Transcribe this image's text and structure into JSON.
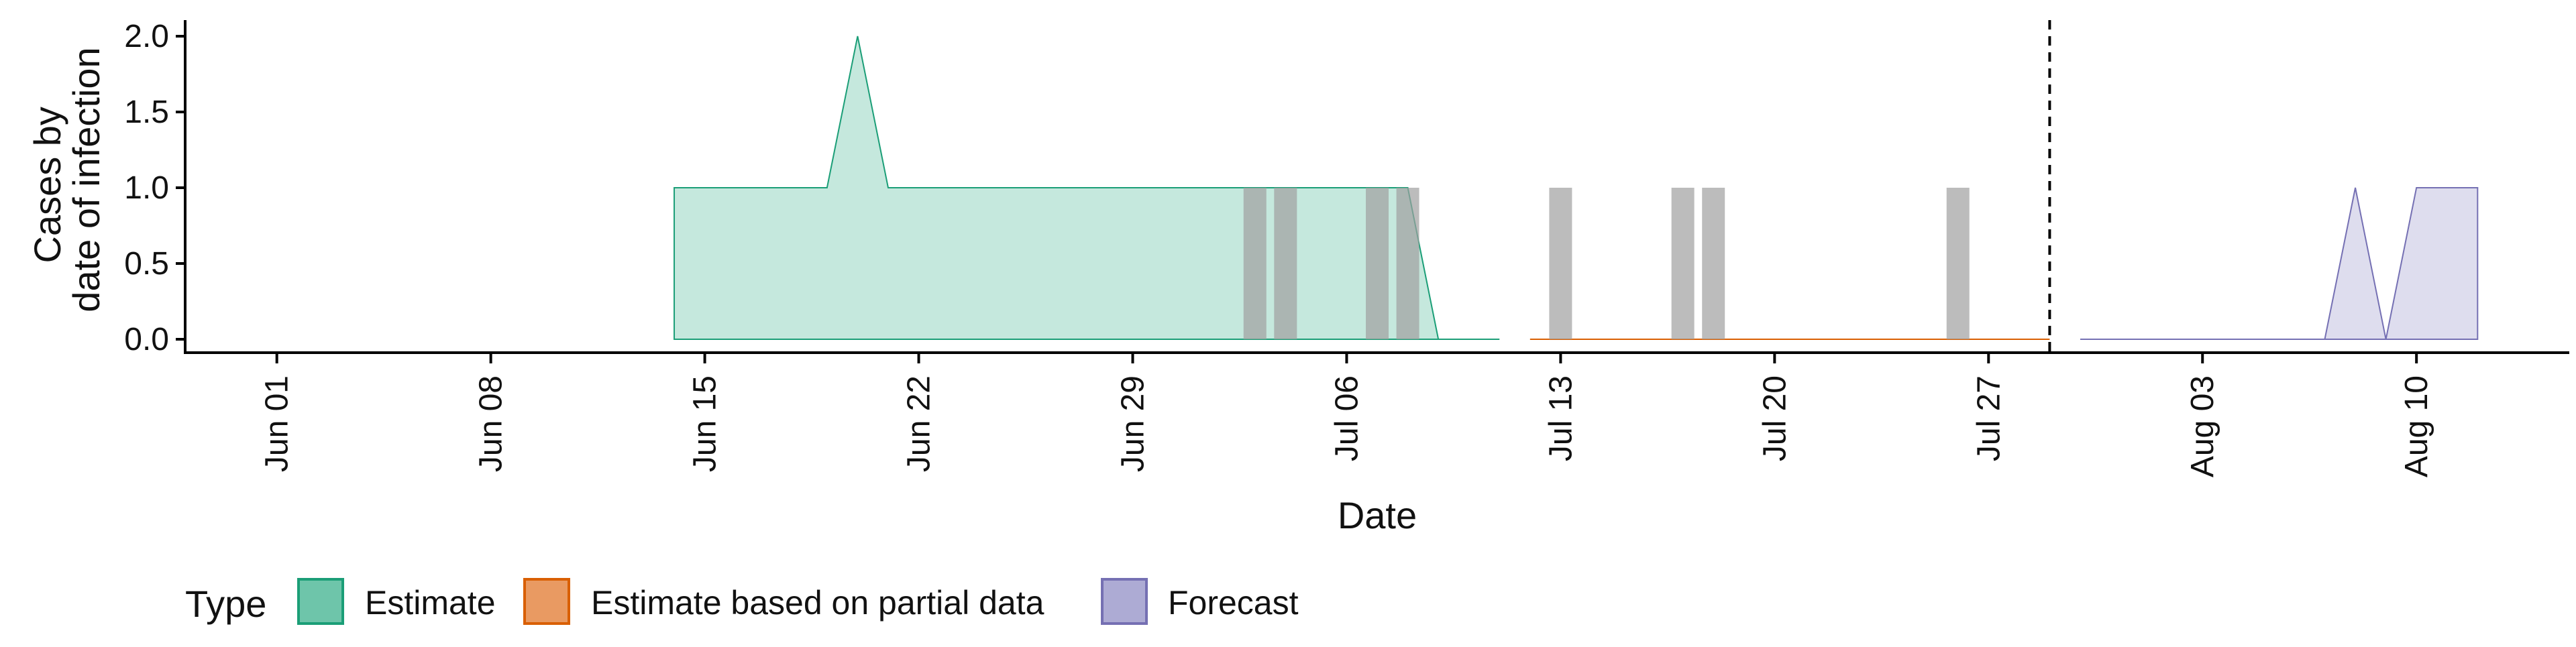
{
  "chart_data": {
    "type": "area",
    "xlabel": "Date",
    "ylabel": [
      "Cases by",
      "date of infection"
    ],
    "ylim": [
      0,
      2
    ],
    "xlim": [
      "2020-05-29",
      "2020-08-15"
    ],
    "x_ticks": [
      "2020-06-01",
      "2020-06-08",
      "2020-06-15",
      "2020-06-22",
      "2020-06-29",
      "2020-07-06",
      "2020-07-13",
      "2020-07-20",
      "2020-07-27",
      "2020-08-03",
      "2020-08-10"
    ],
    "x_tick_labels": [
      "Jun 01",
      "Jun 08",
      "Jun 15",
      "Jun 22",
      "Jun 29",
      "Jul 06",
      "Jul 13",
      "Jul 20",
      "Jul 27",
      "Aug 03",
      "Aug 10"
    ],
    "y_ticks": [
      0,
      0.5,
      1,
      1.5,
      2
    ],
    "y_tick_labels": [
      "0.0",
      "0.5",
      "1.0",
      "1.5",
      "2.0"
    ],
    "grid": false,
    "legend": {
      "title": "Type",
      "position": "bottom",
      "entries": [
        {
          "label": "Estimate",
          "fill": "#66c2a5",
          "stroke": "#1b9e77"
        },
        {
          "label": "Estimate based on partial data",
          "fill": "#e8955a",
          "stroke": "#d95f02"
        },
        {
          "label": "Forecast",
          "fill": "#a9a6d2",
          "stroke": "#7570b3"
        }
      ]
    },
    "series": [
      {
        "name": "Estimate",
        "color": "#1b9e77",
        "x": [
          "2020-06-14",
          "2020-06-19",
          "2020-06-20",
          "2020-06-21",
          "2020-07-08",
          "2020-07-09",
          "2020-07-11"
        ],
        "lower": [
          0,
          0,
          0,
          0,
          0,
          0,
          0
        ],
        "upper": [
          1,
          1,
          2,
          1,
          1,
          0,
          0
        ]
      },
      {
        "name": "Estimate based on partial data",
        "color": "#d95f02",
        "x": [
          "2020-07-12",
          "2020-07-29"
        ],
        "lower": [
          0,
          0
        ],
        "upper": [
          0,
          0
        ]
      },
      {
        "name": "Forecast",
        "color": "#7570b3",
        "x": [
          "2020-07-30",
          "2020-08-07",
          "2020-08-08",
          "2020-08-09",
          "2020-08-10",
          "2020-08-12"
        ],
        "lower": [
          0,
          0,
          0,
          0,
          0,
          0
        ],
        "upper": [
          0,
          0,
          1,
          0,
          1,
          1
        ]
      }
    ],
    "reported_cases": {
      "color": "#a0a0a0",
      "bars": [
        {
          "date": "2020-07-03",
          "value": 1
        },
        {
          "date": "2020-07-04",
          "value": 1
        },
        {
          "date": "2020-07-07",
          "value": 1
        },
        {
          "date": "2020-07-08",
          "value": 1
        },
        {
          "date": "2020-07-13",
          "value": 1
        },
        {
          "date": "2020-07-17",
          "value": 1
        },
        {
          "date": "2020-07-18",
          "value": 1
        },
        {
          "date": "2020-07-26",
          "value": 1
        }
      ]
    },
    "vline": {
      "date": "2020-07-29",
      "style": "dashed"
    }
  }
}
